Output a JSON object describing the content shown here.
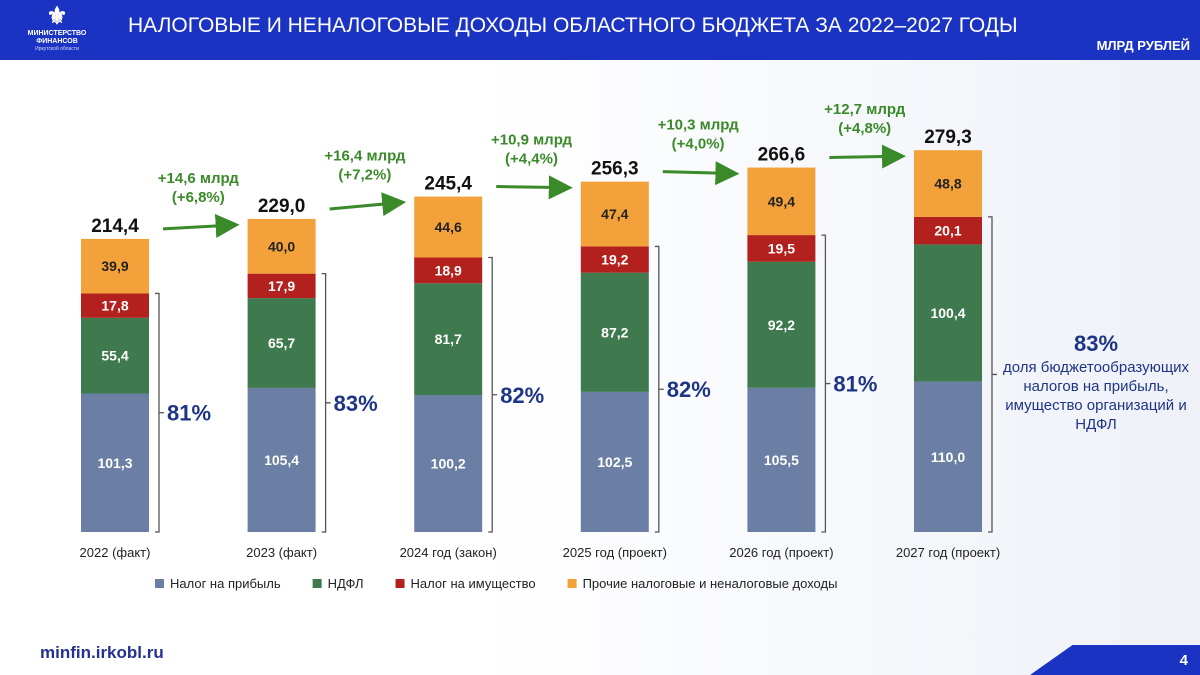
{
  "header": {
    "title": "НАЛОГОВЫЕ И НЕНАЛОГОВЫЕ ДОХОДЫ ОБЛАСТНОГО БЮДЖЕТА ЗА 2022–2027 ГОДЫ",
    "units": "МЛРД РУБЛЕЙ",
    "logo_text": [
      "МИНИСТЕРСТВО",
      "ФИНАНСОВ",
      "Иркутской области"
    ]
  },
  "footer": {
    "url": "minfin.irkobl.ru",
    "page": "4"
  },
  "side_note": {
    "value": "83%",
    "text": "доля бюджетообразующих налогов на прибыль, имущество организаций и НДФЛ"
  },
  "colors": {
    "profit": "#6b7fa4",
    "ndfl": "#3e7a4d",
    "property": "#b3211f",
    "other": "#f3a13a",
    "header": "#1a33c2",
    "pct": "#1e3585",
    "growth": "#3a8a2a"
  },
  "chart_data": {
    "type": "bar",
    "stacked": true,
    "title": "",
    "xlabel": "",
    "ylabel": "млрд рублей",
    "ylim": [
      0,
      290
    ],
    "grid": false,
    "legend_position": "bottom",
    "categories": [
      "2022 (факт)",
      "2023 (факт)",
      "2024 год (закон)",
      "2025 год (проект)",
      "2026 год (проект)",
      "2027 год (проект)"
    ],
    "series": [
      {
        "name": "Налог на прибыль",
        "key": "profit",
        "values": [
          101.3,
          105.4,
          100.2,
          102.5,
          105.5,
          110.0
        ],
        "labels": [
          "101,3",
          "105,4",
          "100,2",
          "102,5",
          "105,5",
          "110,0"
        ]
      },
      {
        "name": "НДФЛ",
        "key": "ndfl",
        "values": [
          55.4,
          65.7,
          81.7,
          87.2,
          92.2,
          100.4
        ],
        "labels": [
          "55,4",
          "65,7",
          "81,7",
          "87,2",
          "92,2",
          "100,4"
        ]
      },
      {
        "name": "Налог на имущество",
        "key": "property",
        "values": [
          17.8,
          17.9,
          18.9,
          19.2,
          19.5,
          20.1
        ],
        "labels": [
          "17,8",
          "17,9",
          "18,9",
          "19,2",
          "19,5",
          "20,1"
        ]
      },
      {
        "name": "Прочие налоговые и неналоговые доходы",
        "key": "other",
        "values": [
          39.9,
          40.0,
          44.6,
          47.4,
          49.4,
          48.8
        ],
        "labels": [
          "39,9",
          "40,0",
          "44,6",
          "47,4",
          "49,4",
          "48,8"
        ]
      }
    ],
    "totals": [
      214.4,
      229.0,
      245.4,
      256.3,
      266.6,
      279.3
    ],
    "total_labels": [
      "214,4",
      "229,0",
      "245,4",
      "256,3",
      "266,6",
      "279,3"
    ],
    "shares": [
      "81%",
      "83%",
      "82%",
      "82%",
      "81%"
    ],
    "growth": [
      {
        "abs": "+14,6 млрд",
        "pct": "(+6,8%)"
      },
      {
        "abs": "+16,4 млрд",
        "pct": "(+7,2%)"
      },
      {
        "abs": "+10,9 млрд",
        "pct": "(+4,4%)"
      },
      {
        "abs": "+10,3 млрд",
        "pct": "(+4,0%)"
      },
      {
        "abs": "+12,7 млрд",
        "pct": "(+4,8%)"
      }
    ]
  }
}
